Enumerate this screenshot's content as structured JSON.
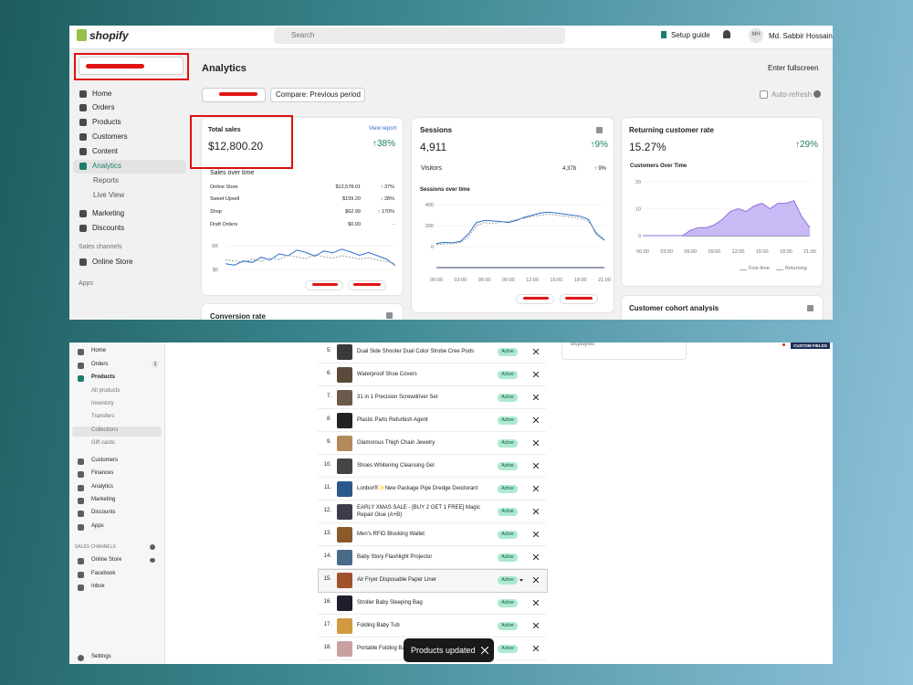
{
  "top": {
    "header": {
      "logo": "shopify",
      "search": "Search",
      "setup_guide": "Setup guide",
      "avatar": "MH",
      "user": "Md. Sabbir Hossain"
    },
    "sidebar": {
      "items": [
        "Home",
        "Orders",
        "Products",
        "Customers",
        "Content",
        "Analytics",
        "Reports",
        "Live View",
        "Marketing",
        "Discounts"
      ],
      "sales_channels": "Sales channels",
      "online_store": "Online Store",
      "apps": "Apps"
    },
    "page": {
      "title": "Analytics",
      "compare": "Compare: Previous period",
      "fullscreen": "Enter fullscreen",
      "auto_refresh": "Auto-refresh"
    },
    "total_sales": {
      "title": "Total sales",
      "link": "View report",
      "value": "$12,800.20",
      "change": "↑38%",
      "chart_title": "Sales over time",
      "rows": [
        {
          "name": "Online Store",
          "amount": "$12,578.01",
          "change": "↑ 37%"
        },
        {
          "name": "Sweet Upsell",
          "amount": "$159.20",
          "change": "↓ 28%"
        },
        {
          "name": "Shop",
          "amount": "$62.99",
          "change": "↑ 170%"
        },
        {
          "name": "Draft Orders",
          "amount": "$0.00",
          "change": "-"
        }
      ],
      "chart": {
        "type": "line",
        "ylim": [
          0,
          6000
        ],
        "yticks": [
          {
            "value": 0,
            "label": "$0"
          },
          {
            "value": 5000,
            "label": "5K"
          }
        ],
        "series": [
          {
            "color": "#2c6ecb",
            "values": [
              1200,
              900,
              1800,
              1500,
              2600,
              2000,
              3300,
              2900,
              4100,
              3600,
              2800,
              3900,
              3500,
              4300,
              3700,
              3000,
              3600,
              2900,
              2200,
              800
            ]
          },
          {
            "color": "#9aa0a6",
            "dashed": true,
            "values": [
              2000,
              1800,
              1500,
              2200,
              1700,
              2500,
              2100,
              3000,
              2600,
              2300,
              3100,
              2700,
              2400,
              2900,
              2600,
              2200,
              2500,
              2000,
              1700,
              1200
            ]
          }
        ]
      }
    },
    "sessions": {
      "title": "Sessions",
      "value": "4,911",
      "change": "↑9%",
      "visitors_label": "Visitors",
      "visitors": "4,378",
      "visitors_change": "↑ 9%",
      "chart_title": "Sessions over time",
      "chart": {
        "type": "line",
        "ylim": [
          0,
          480
        ],
        "yticks": [
          0,
          200,
          400
        ],
        "xticks": [
          "00:00",
          "03:00",
          "06:00",
          "09:00",
          "12:00",
          "15:00",
          "18:00",
          "21:00"
        ],
        "series": [
          {
            "color": "#2c6ecb",
            "values": [
              30,
              40,
              35,
              50,
              120,
              230,
              250,
              245,
              240,
              230,
              250,
              280,
              300,
              320,
              330,
              320,
              310,
              300,
              290,
              260,
              120,
              60
            ]
          },
          {
            "color": "#9aa0a6",
            "dashed": true,
            "values": [
              20,
              25,
              30,
              40,
              90,
              200,
              230,
              220,
              235,
              240,
              260,
              270,
              290,
              300,
              310,
              300,
              290,
              280,
              270,
              240,
              140,
              70
            ]
          }
        ]
      }
    },
    "returning": {
      "title": "Returning customer rate",
      "value": "15.27%",
      "change": "↑29%",
      "chart_title": "Customers Over Time",
      "chart": {
        "type": "line",
        "ylim": [
          0,
          20
        ],
        "yticks": [
          0,
          10,
          20
        ],
        "xticks": [
          "00:00",
          "03:00",
          "06:00",
          "09:00",
          "12:00",
          "15:00",
          "18:00",
          "21:00"
        ],
        "series": [
          {
            "name": "First-time",
            "color": "#2d3b6b",
            "values": [
              0,
              0,
              0,
              0,
              0,
              0,
              0,
              0,
              0,
              0,
              0,
              0,
              0,
              0,
              0,
              0,
              0,
              0,
              0,
              0,
              0,
              0
            ]
          },
          {
            "name": "Returning",
            "color": "#8a6fdf",
            "fill": "#c9b9f4",
            "values": [
              0,
              0,
              0,
              0,
              0,
              0,
              2,
              3,
              3,
              4,
              6,
              9,
              10,
              9,
              11,
              12,
              10,
              12,
              12,
              13,
              7,
              3
            ]
          }
        ]
      }
    },
    "conversion": {
      "title": "Conversion rate"
    },
    "cohort": {
      "title": "Customer cohort analysis"
    }
  },
  "bottom": {
    "sidebar": {
      "items": [
        "Home",
        "Orders",
        "Products",
        "All products",
        "Inventory",
        "Transfers",
        "Collections",
        "Gift cards",
        "Customers",
        "Finances",
        "Analytics",
        "Marketing",
        "Discounts",
        "Apps"
      ],
      "orders_badge": "1",
      "sales_channels": "SALES CHANNELS",
      "channels": [
        "Online Store",
        "Facebook",
        "Inbox"
      ],
      "settings": "Settings"
    },
    "products": [
      {
        "num": "5.",
        "name": "Dual Side Shooter Dual Color Strobe Cree Pods",
        "status": "Active"
      },
      {
        "num": "6.",
        "name": "Waterproof Shoe Covers",
        "status": "Active"
      },
      {
        "num": "7.",
        "name": "31 in 1 Precision Screwdriver Set",
        "status": "Active"
      },
      {
        "num": "8.",
        "name": "Plastic Parts Refurbish Agent",
        "status": "Active"
      },
      {
        "num": "9.",
        "name": "Glamorous Thigh Chain Jewelry",
        "status": "Active"
      },
      {
        "num": "10.",
        "name": "Shoes Whitening Cleansing Gel",
        "status": "Active"
      },
      {
        "num": "11.",
        "name": "Lonbor®✨New Package Pipe Dredge Deodorant",
        "status": "Active"
      },
      {
        "num": "12.",
        "name": "EARLY XMAS SALE - [BUY 2 GET 1 FREE] Magic Repair Glue (A+B)",
        "status": "Active"
      },
      {
        "num": "13.",
        "name": "Men's RFID Blocking Wallet",
        "status": "Active"
      },
      {
        "num": "14.",
        "name": "Baby Story Flashlight Projector",
        "status": "Active"
      },
      {
        "num": "15.",
        "name": "Air Fryer Disposable Paper Liner",
        "status": "Active"
      },
      {
        "num": "16.",
        "name": "Stroller Baby Sleeping Bag",
        "status": "Active"
      },
      {
        "num": "17.",
        "name": "Folding Baby Tub",
        "status": "Active"
      },
      {
        "num": "18.",
        "name": "Portable Folding Ba",
        "status": "Active"
      }
    ],
    "note": "displayed.",
    "custom_fields": "CUSTOM FIELDS",
    "toast": "Products updated"
  }
}
